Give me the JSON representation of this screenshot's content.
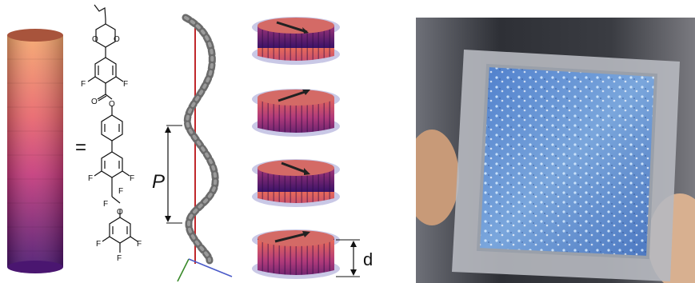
{
  "molecule": {
    "equals_sign": "=",
    "atoms": {
      "o_ring_top_left": "O",
      "o_ring_top_right": "O",
      "f_ring1_left": "F",
      "f_ring1_right": "F",
      "o_carbonyl": "O",
      "o_ester": "O",
      "f_ring3_left": "F",
      "f_ring3_right": "F",
      "f_cf2_left": "F",
      "f_cf2_right": "F",
      "o_ether": "O",
      "f_ring4_left": "F",
      "f_ring4_bottom": "F",
      "f_ring4_right": "F"
    }
  },
  "helix": {
    "pitch_label": "P"
  },
  "stacks": {
    "layer_spacing_label": "d"
  },
  "colors": {
    "cylinder_top": "#f5a06a",
    "cylinder_mid": "#d8456f",
    "cylinder_bottom": "#5a1a7a",
    "helix_axis": "#c0282c",
    "axis_green": "#3a8a2a",
    "axis_blue": "#4a5ac8",
    "disc": "#c9c8e6",
    "photo_blue": "#5b8fd0"
  }
}
